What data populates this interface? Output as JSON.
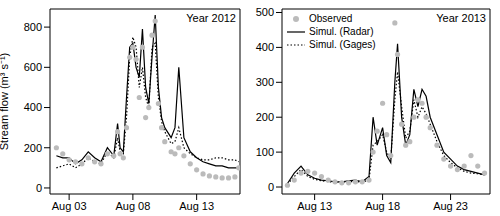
{
  "chart_data": [
    {
      "type": "line",
      "annotation": "Year 2012",
      "y_label": "Stream flow (m³ s⁻¹)",
      "x": [
        2,
        2.5,
        3,
        3.5,
        4,
        4.5,
        5,
        5.5,
        6,
        6.5,
        6.8,
        7,
        7.25,
        7.5,
        7.75,
        8,
        8.25,
        8.5,
        8.75,
        9,
        9.25,
        9.5,
        9.75,
        10,
        10.25,
        10.5,
        11,
        11.3,
        11.6,
        12,
        12.5,
        13,
        13.5,
        14,
        14.5,
        15,
        15.5,
        16,
        16.3
      ],
      "xlim": [
        1.5,
        16.4
      ],
      "xticks": [
        {
          "value": 3,
          "label": "Aug 03"
        },
        {
          "value": 8,
          "label": "Aug 08"
        },
        {
          "value": 13,
          "label": "Aug 13"
        }
      ],
      "ylim": [
        -30,
        890
      ],
      "yticks": [
        0,
        200,
        400,
        600,
        800
      ],
      "series": [
        {
          "type": "scatter",
          "marker": "circle",
          "color": "#bbbbbb",
          "values": [
            200,
            170,
            140,
            130,
            120,
            150,
            130,
            120,
            170,
            160,
            280,
            170,
            150,
            300,
            650,
            700,
            640,
            450,
            700,
            350,
            400,
            760,
            830,
            420,
            300,
            230,
            180,
            170,
            200,
            160,
            120,
            90,
            70,
            60,
            55,
            50,
            50,
            55,
            100
          ]
        },
        {
          "type": "line",
          "line_style": "solid",
          "color": "#000000",
          "values": [
            160,
            150,
            150,
            120,
            140,
            180,
            150,
            130,
            200,
            160,
            320,
            200,
            180,
            450,
            700,
            720,
            600,
            550,
            790,
            500,
            420,
            650,
            860,
            500,
            350,
            300,
            250,
            300,
            600,
            250,
            180,
            150,
            130,
            120,
            110,
            110,
            100,
            100,
            100
          ]
        },
        {
          "type": "line",
          "line_style": "dotted",
          "color": "#000000",
          "values": [
            100,
            110,
            120,
            100,
            120,
            150,
            130,
            120,
            180,
            150,
            250,
            180,
            170,
            350,
            650,
            750,
            700,
            500,
            600,
            450,
            400,
            700,
            720,
            450,
            330,
            280,
            220,
            230,
            300,
            200,
            170,
            150,
            140,
            140,
            150,
            150,
            140,
            140,
            130
          ]
        }
      ]
    },
    {
      "type": "line",
      "annotation": "Year 2013",
      "legend": "upper left",
      "x": [
        11,
        11.5,
        12,
        12.5,
        13,
        13.5,
        14,
        14.5,
        15,
        15.5,
        16,
        16.5,
        17,
        17.3,
        17.6,
        18,
        18.3,
        18.6,
        18.9,
        19.1,
        19.4,
        19.7,
        20,
        20.3,
        20.6,
        20.9,
        21.2,
        21.5,
        22,
        22.5,
        23,
        23.5,
        24,
        24.5,
        25,
        25.5
      ],
      "xlim": [
        10.6,
        25.9
      ],
      "xticks": [
        {
          "value": 13,
          "label": "Aug 13"
        },
        {
          "value": 18,
          "label": "Aug 18"
        },
        {
          "value": 23,
          "label": "Aug 23"
        }
      ],
      "ylim": [
        -20,
        510
      ],
      "yticks": [
        0,
        100,
        200,
        300,
        400,
        500
      ],
      "series": [
        {
          "name": "Observed",
          "type": "scatter",
          "marker": "circle",
          "color": "#bbbbbb",
          "values": [
            5,
            20,
            40,
            45,
            40,
            30,
            20,
            15,
            12,
            12,
            15,
            15,
            20,
            100,
            160,
            240,
            150,
            90,
            470,
            380,
            180,
            120,
            130,
            200,
            250,
            240,
            200,
            170,
            120,
            80,
            60,
            50,
            60,
            90,
            60,
            40
          ]
        },
        {
          "name": "Simul. (Radar)",
          "type": "line",
          "line_style": "solid",
          "color": "#000000",
          "values": [
            10,
            40,
            60,
            35,
            25,
            20,
            18,
            15,
            15,
            18,
            20,
            15,
            30,
            200,
            120,
            170,
            90,
            70,
            300,
            410,
            200,
            120,
            150,
            280,
            230,
            280,
            260,
            200,
            150,
            100,
            80,
            60,
            50,
            45,
            40,
            35
          ]
        },
        {
          "name": "Simul. (Gages)",
          "type": "line",
          "line_style": "dotted",
          "color": "#000000",
          "values": [
            8,
            30,
            50,
            30,
            22,
            18,
            15,
            14,
            14,
            15,
            16,
            14,
            20,
            120,
            130,
            150,
            100,
            80,
            250,
            330,
            230,
            140,
            160,
            250,
            200,
            230,
            210,
            180,
            130,
            90,
            70,
            55,
            45,
            40,
            38,
            35
          ]
        }
      ]
    }
  ]
}
